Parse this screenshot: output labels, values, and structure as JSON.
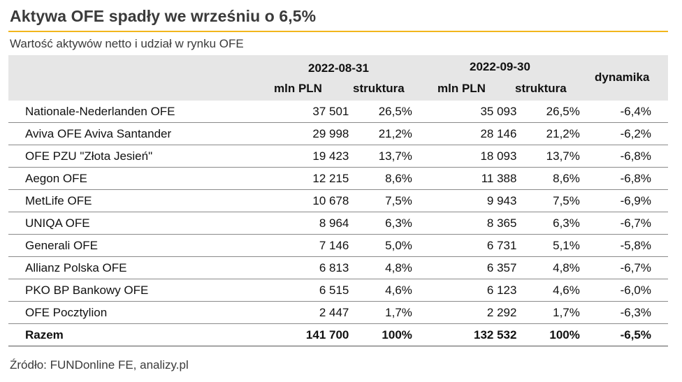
{
  "title": "Aktywa OFE spadły we wrześniu o 6,5%",
  "subtitle": "Wartość aktywów netto i udział w rynku OFE",
  "header": {
    "period1": "2022-08-31",
    "period2": "2022-09-30",
    "col_mln": "mln PLN",
    "col_struktura": "struktura",
    "col_dynamika": "dynamika"
  },
  "rows": [
    {
      "name": "Nationale-Nederlanden OFE",
      "mln1": "37 501",
      "str1": "26,5%",
      "mln2": "35 093",
      "str2": "26,5%",
      "dyn": "-6,4%"
    },
    {
      "name": "Aviva OFE Aviva Santander",
      "mln1": "29 998",
      "str1": "21,2%",
      "mln2": "28 146",
      "str2": "21,2%",
      "dyn": "-6,2%"
    },
    {
      "name": "OFE PZU \"Złota Jesień\"",
      "mln1": "19 423",
      "str1": "13,7%",
      "mln2": "18 093",
      "str2": "13,7%",
      "dyn": "-6,8%"
    },
    {
      "name": "Aegon OFE",
      "mln1": "12 215",
      "str1": "8,6%",
      "mln2": "11 388",
      "str2": "8,6%",
      "dyn": "-6,8%"
    },
    {
      "name": "MetLife OFE",
      "mln1": "10 678",
      "str1": "7,5%",
      "mln2": "9 943",
      "str2": "7,5%",
      "dyn": "-6,9%"
    },
    {
      "name": "UNIQA OFE",
      "mln1": "8 964",
      "str1": "6,3%",
      "mln2": "8 365",
      "str2": "6,3%",
      "dyn": "-6,7%"
    },
    {
      "name": "Generali OFE",
      "mln1": "7 146",
      "str1": "5,0%",
      "mln2": "6 731",
      "str2": "5,1%",
      "dyn": "-5,8%"
    },
    {
      "name": "Allianz Polska OFE",
      "mln1": "6 813",
      "str1": "4,8%",
      "mln2": "6 357",
      "str2": "4,8%",
      "dyn": "-6,7%"
    },
    {
      "name": "PKO BP Bankowy OFE",
      "mln1": "6 515",
      "str1": "4,6%",
      "mln2": "6 123",
      "str2": "4,6%",
      "dyn": "-6,0%"
    },
    {
      "name": "OFE Pocztylion",
      "mln1": "2 447",
      "str1": "1,7%",
      "mln2": "2 292",
      "str2": "1,7%",
      "dyn": "-6,3%"
    }
  ],
  "total": {
    "name": "Razem",
    "mln1": "141 700",
    "str1": "100%",
    "mln2": "132 532",
    "str2": "100%",
    "dyn": "-6,5%"
  },
  "source": "Źródło: FUNDonline FE, analizy.pl",
  "colors": {
    "accent_rule": "#f2b61c",
    "header_bg": "#e6e6e6"
  }
}
